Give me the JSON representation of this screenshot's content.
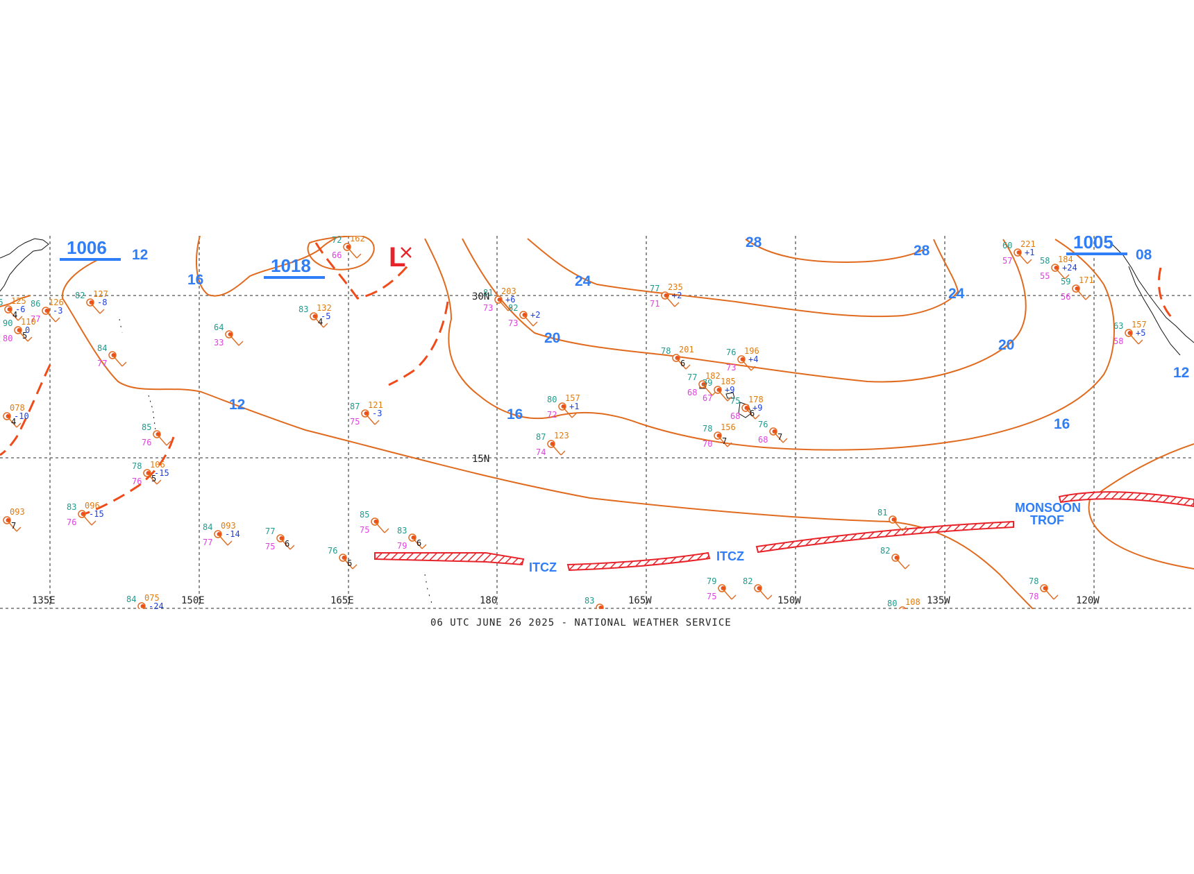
{
  "footer": "06 UTC JUNE 26 2025 - NATIONAL WEATHER SERVICE",
  "colors": {
    "isobar": "#e06a1e",
    "label_blue": "#2f7ef7",
    "itcz_red": "#e8232a",
    "temperature_teal": "#1e9a8e",
    "dewpoint_magenta": "#e040e0",
    "pressure_orange": "#e07b10",
    "tendency_blue": "#1c3fd8"
  },
  "grid": {
    "longitudes": [
      "135E",
      "150E",
      "165E",
      "180",
      "165W",
      "150W",
      "135W",
      "120W"
    ],
    "latitudes": [
      "30N",
      "15N"
    ]
  },
  "pressure_centers": [
    {
      "value": "1006"
    },
    {
      "value": "1018"
    },
    {
      "value": "1005"
    }
  ],
  "isobar_labels": [
    "12",
    "16",
    "12",
    "16",
    "24",
    "20",
    "28",
    "28",
    "24",
    "20",
    "16",
    "08",
    "12"
  ],
  "features": {
    "itcz_labels": [
      "ITCZ",
      "ITCZ"
    ],
    "monsoon_label_1": "MONSOON",
    "monsoon_label_2": "TROF",
    "low_symbol": "L"
  },
  "observations": [
    {
      "t": "72",
      "p": "162",
      "d": "66",
      "v": "",
      "tend": ""
    },
    {
      "t": "86",
      "p": "126",
      "d": "77",
      "v": "",
      "tend": "-3"
    },
    {
      "t": "82",
      "p": "127",
      "d": "",
      "v": "",
      "tend": "-8"
    },
    {
      "t": "83",
      "p": "132",
      "d": "",
      "v": "4",
      "tend": "-5"
    },
    {
      "t": "64",
      "p": "",
      "d": "33",
      "v": "",
      "tend": ""
    },
    {
      "t": "84",
      "p": "",
      "d": "77",
      "v": "",
      "tend": ""
    },
    {
      "t": "81",
      "p": "203",
      "d": "73",
      "v": "",
      "tend": "+6"
    },
    {
      "t": "82",
      "p": "",
      "d": "73",
      "v": "",
      "tend": "+2"
    },
    {
      "t": "77",
      "p": "235",
      "d": "71",
      "v": "",
      "tend": "+2"
    },
    {
      "t": "78",
      "p": "201",
      "d": "",
      "v": "6",
      "tend": ""
    },
    {
      "t": "76",
      "p": "196",
      "d": "73",
      "v": "",
      "tend": "+4"
    },
    {
      "t": "77",
      "p": "182",
      "d": "68",
      "v": "",
      "tend": ""
    },
    {
      "t": "79",
      "p": "185",
      "d": "67",
      "v": "",
      "tend": "+9"
    },
    {
      "t": "75",
      "p": "178",
      "d": "68",
      "v": "6",
      "tend": "+9"
    },
    {
      "t": "87",
      "p": "121",
      "d": "75",
      "v": "",
      "tend": "-3"
    },
    {
      "t": "80",
      "p": "157",
      "d": "72",
      "v": "",
      "tend": "+1"
    },
    {
      "t": "87",
      "p": "123",
      "d": "74",
      "v": "",
      "tend": ""
    },
    {
      "t": "78",
      "p": "156",
      "d": "70",
      "v": "7",
      "tend": ""
    },
    {
      "t": "76",
      "p": "",
      "d": "68",
      "v": "7",
      "tend": ""
    },
    {
      "t": "85",
      "p": "",
      "d": "76",
      "v": "",
      "tend": ""
    },
    {
      "t": "78",
      "p": "106",
      "d": "76",
      "v": "5",
      "tend": "-15"
    },
    {
      "t": "83",
      "p": "096",
      "d": "76",
      "v": "",
      "tend": "-15"
    },
    {
      "t": "84",
      "p": "093",
      "d": "77",
      "v": "",
      "tend": "-14"
    },
    {
      "t": "77",
      "p": "",
      "d": "75",
      "v": "6",
      "tend": ""
    },
    {
      "t": "85",
      "p": "",
      "d": "75",
      "v": "",
      "tend": ""
    },
    {
      "t": "83",
      "p": "",
      "d": "79",
      "v": "6",
      "tend": ""
    },
    {
      "t": "81",
      "p": "",
      "d": "",
      "v": "",
      "tend": ""
    },
    {
      "t": "82",
      "p": "",
      "d": "",
      "v": "",
      "tend": ""
    },
    {
      "t": "79",
      "p": "",
      "d": "75",
      "v": "",
      "tend": ""
    },
    {
      "t": "82",
      "p": "",
      "d": "",
      "v": "",
      "tend": ""
    },
    {
      "t": "76",
      "p": "",
      "d": "",
      "v": "6",
      "tend": ""
    },
    {
      "t": "84",
      "p": "075",
      "d": "",
      "v": "",
      "tend": "-24"
    },
    {
      "t": "83",
      "p": "",
      "d": "",
      "v": "",
      "tend": ""
    },
    {
      "t": "80",
      "p": "108",
      "d": "",
      "v": "",
      "tend": ""
    },
    {
      "t": "78",
      "p": "",
      "d": "78",
      "v": "",
      "tend": ""
    },
    {
      "t": "60",
      "p": "221",
      "d": "57",
      "v": "",
      "tend": "+1"
    },
    {
      "t": "58",
      "p": "184",
      "d": "55",
      "v": "",
      "tend": "+24"
    },
    {
      "t": "59",
      "p": "171",
      "d": "56",
      "v": "",
      "tend": ""
    },
    {
      "t": "63",
      "p": "157",
      "d": "58",
      "v": "",
      "tend": "+5"
    },
    {
      "t": "86",
      "p": "125",
      "d": "",
      "v": "4",
      "tend": "-6"
    },
    {
      "t": "90",
      "p": "110",
      "d": "80",
      "v": "5",
      "tend": "0"
    },
    {
      "t": "",
      "p": "093",
      "d": "",
      "v": "7",
      "tend": ""
    },
    {
      "t": "",
      "p": "078",
      "d": "",
      "v": "4",
      "tend": "-10"
    }
  ]
}
